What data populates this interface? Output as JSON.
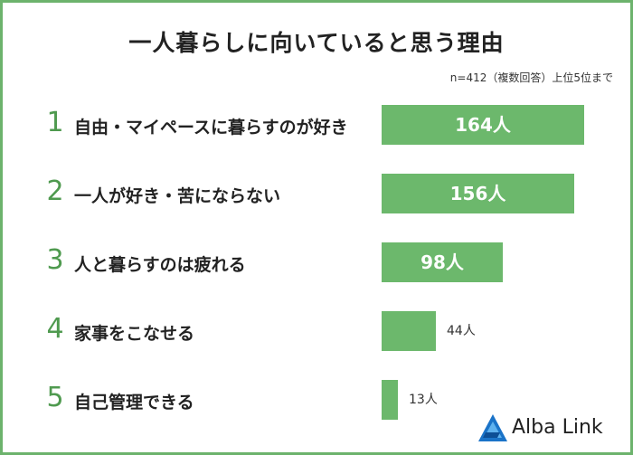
{
  "title": "一人暮らしに向いていると思う理由",
  "note": "n=412（複数回答）上位5位まで",
  "logo_text": "Alba Link",
  "colors": {
    "bar": "#6cb86c",
    "rank": "#4f9a4f",
    "border": "#6db36d"
  },
  "chart_data": {
    "type": "bar",
    "orientation": "horizontal",
    "title": "一人暮らしに向いていると思う理由",
    "ranks": [
      "1",
      "2",
      "3",
      "4",
      "5"
    ],
    "categories": [
      "自由・マイペースに暮らすのが好き",
      "一人が好き・苦にならない",
      "人と暮らすのは疲れる",
      "家事をこなせる",
      "自己管理できる"
    ],
    "values": [
      164,
      156,
      98,
      44,
      13
    ],
    "value_labels": [
      "164人",
      "156人",
      "98人",
      "44人",
      "13人"
    ],
    "unit": "人",
    "grid": false
  }
}
